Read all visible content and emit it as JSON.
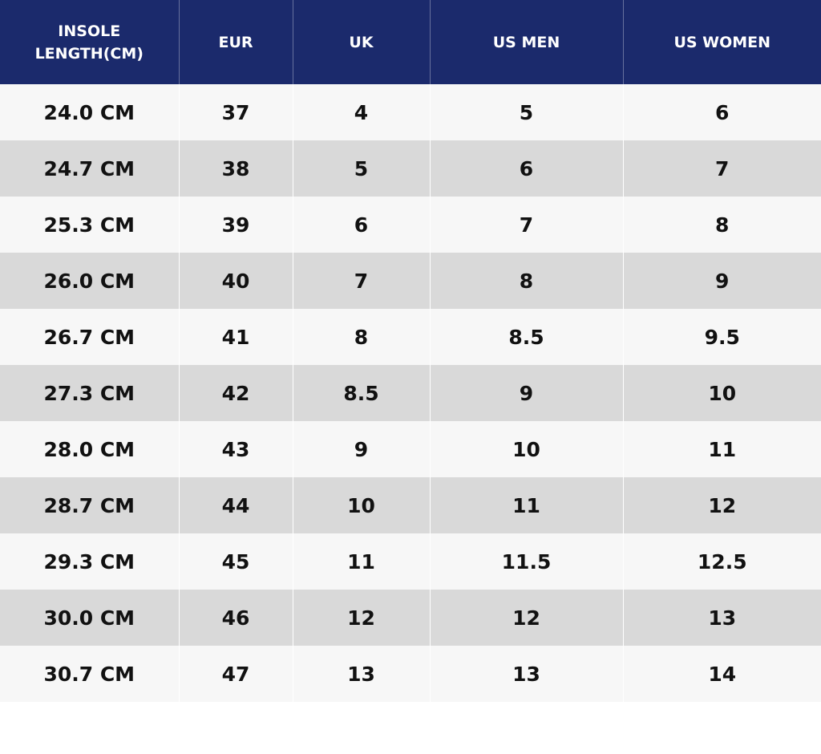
{
  "table": {
    "header": [
      "INSOLE LENGTH(CM)",
      "EUR",
      "UK",
      "US MEN",
      "US WOMEN"
    ],
    "rows": [
      [
        "24.0 CM",
        "37",
        "4",
        "5",
        "6"
      ],
      [
        "24.7 CM",
        "38",
        "5",
        "6",
        "7"
      ],
      [
        "25.3 CM",
        "39",
        "6",
        "7",
        "8"
      ],
      [
        "26.0 CM",
        "40",
        "7",
        "8",
        "9"
      ],
      [
        "26.7 CM",
        "41",
        "8",
        "8.5",
        "9.5"
      ],
      [
        "27.3 CM",
        "42",
        "8.5",
        "9",
        "10"
      ],
      [
        "28.0 CM",
        "43",
        "9",
        "10",
        "11"
      ],
      [
        "28.7 CM",
        "44",
        "10",
        "11",
        "12"
      ],
      [
        "29.3 CM",
        "45",
        "11",
        "11.5",
        "12.5"
      ],
      [
        "30.0 CM",
        "46",
        "12",
        "12",
        "13"
      ],
      [
        "30.7 CM",
        "47",
        "13",
        "13",
        "14"
      ]
    ]
  }
}
